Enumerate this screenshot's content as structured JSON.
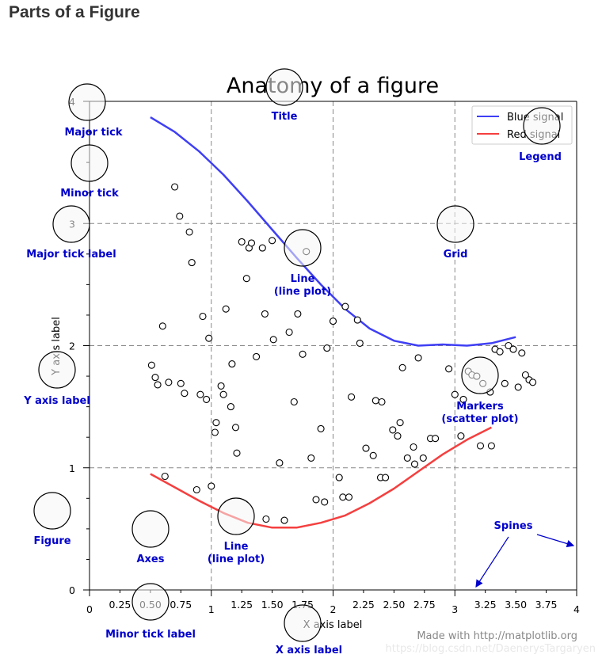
{
  "page": {
    "heading": "Parts of a Figure"
  },
  "chart_data": {
    "type": "line",
    "title": "Anatomy of a figure",
    "xlabel": "X axis label",
    "ylabel": "Y axis label",
    "xlim": [
      0,
      4
    ],
    "ylim": [
      0,
      4
    ],
    "grid": true,
    "legend_position": "top-right",
    "xticks_major": [
      0,
      1,
      2,
      3,
      4
    ],
    "xticks_minor": [
      "0.25",
      "0.50",
      "0.75",
      "1.25",
      "1.50",
      "1.75",
      "2.25",
      "2.50",
      "2.75",
      "3.25",
      "3.50",
      "3.75"
    ],
    "yticks_major": [
      0,
      1,
      2,
      3,
      4
    ],
    "series": [
      {
        "name": "Blue signal",
        "color": "#3f3ff5",
        "x": [
          0.5,
          0.7,
          0.9,
          1.1,
          1.3,
          1.5,
          1.7,
          1.9,
          2.1,
          2.3,
          2.5,
          2.7,
          2.9,
          3.1,
          3.3,
          3.5
        ],
        "y": [
          3.87,
          3.75,
          3.59,
          3.4,
          3.18,
          2.95,
          2.72,
          2.5,
          2.3,
          2.14,
          2.04,
          2.0,
          2.01,
          2.0,
          2.02,
          2.07
        ]
      },
      {
        "name": "Red signal",
        "color": "#f53f3f",
        "x": [
          0.5,
          0.7,
          0.9,
          1.1,
          1.3,
          1.5,
          1.7,
          1.9,
          2.1,
          2.3,
          2.5,
          2.7,
          2.9,
          3.1,
          3.3
        ],
        "y": [
          0.95,
          0.84,
          0.73,
          0.63,
          0.55,
          0.51,
          0.51,
          0.55,
          0.61,
          0.71,
          0.83,
          0.97,
          1.11,
          1.23,
          1.33
        ]
      }
    ],
    "markers": {
      "x": [
        0.7,
        0.74,
        0.82,
        0.84,
        0.6,
        0.51,
        0.54,
        0.56,
        0.65,
        0.75,
        0.78,
        0.91,
        0.93,
        0.96,
        0.98,
        1.04,
        1.08,
        1.1,
        1.12,
        1.17,
        1.2,
        1.21,
        1.29,
        1.31,
        1.33,
        1.37,
        1.42,
        1.44,
        1.51,
        1.56,
        1.64,
        1.68,
        1.71,
        1.75,
        1.82,
        1.9,
        1.95,
        2.0,
        2.05,
        2.1,
        2.15,
        2.2,
        2.22,
        2.27,
        2.33,
        2.35,
        2.39,
        2.43,
        2.49,
        2.53,
        2.57,
        2.61,
        2.66,
        2.7,
        2.74,
        2.8,
        2.84,
        3.0,
        3.07,
        3.11,
        3.14,
        3.18,
        3.23,
        3.29,
        3.33,
        3.37,
        3.41,
        3.44,
        3.48,
        3.52,
        3.55,
        3.58,
        3.61,
        3.64,
        1.86,
        2.4,
        2.55,
        2.67,
        2.95,
        0.62,
        1.0,
        1.16,
        1.45,
        1.6,
        1.78,
        1.93,
        2.08,
        2.13,
        0.88,
        1.03,
        1.25,
        1.5,
        3.3,
        3.21,
        3.05
      ],
      "y": [
        3.3,
        3.06,
        2.93,
        2.68,
        2.16,
        1.84,
        1.74,
        1.68,
        1.7,
        1.69,
        1.61,
        1.6,
        2.24,
        1.56,
        2.06,
        1.37,
        1.67,
        1.6,
        2.3,
        1.85,
        1.33,
        1.12,
        2.55,
        2.8,
        2.84,
        1.91,
        2.8,
        2.26,
        2.05,
        1.04,
        2.11,
        1.54,
        2.26,
        1.93,
        1.08,
        1.32,
        1.98,
        2.2,
        0.92,
        2.32,
        1.58,
        2.21,
        2.02,
        1.16,
        1.1,
        1.55,
        0.92,
        0.92,
        1.31,
        1.26,
        1.82,
        1.08,
        1.17,
        1.9,
        1.08,
        1.24,
        1.24,
        1.6,
        1.56,
        1.79,
        1.76,
        1.75,
        1.69,
        1.62,
        1.97,
        1.95,
        1.69,
        2.0,
        1.97,
        1.66,
        1.94,
        1.76,
        1.72,
        1.7,
        0.74,
        1.54,
        1.37,
        1.03,
        1.81,
        0.93,
        0.85,
        1.5,
        0.58,
        0.57,
        2.77,
        0.72,
        0.76,
        0.76,
        0.82,
        1.29,
        2.85,
        2.86,
        1.18,
        1.18,
        1.26
      ]
    },
    "legend": {
      "entries": [
        "Blue signal",
        "Red signal"
      ]
    },
    "credit": "Made with http://matplotlib.org",
    "watermark": "https://blog.csdn.net/DaenerysTargaryen"
  },
  "annotations": [
    {
      "id": "title",
      "lines": [
        "Title"
      ]
    },
    {
      "id": "legend",
      "lines": [
        "Legend"
      ]
    },
    {
      "id": "major-tick",
      "lines": [
        "Major tick"
      ]
    },
    {
      "id": "minor-tick",
      "lines": [
        "Minor tick"
      ]
    },
    {
      "id": "major-tick-label",
      "lines": [
        "Major tick label"
      ]
    },
    {
      "id": "grid",
      "lines": [
        "Grid"
      ]
    },
    {
      "id": "line-blue",
      "lines": [
        "Line",
        "(line plot)"
      ]
    },
    {
      "id": "y-axis-label",
      "lines": [
        "Y axis label"
      ]
    },
    {
      "id": "markers",
      "lines": [
        "Markers",
        "(scatter plot)"
      ]
    },
    {
      "id": "figure",
      "lines": [
        "Figure"
      ]
    },
    {
      "id": "axes",
      "lines": [
        "Axes"
      ]
    },
    {
      "id": "line-red",
      "lines": [
        "Line",
        "(line plot)"
      ]
    },
    {
      "id": "spines",
      "lines": [
        "Spines"
      ]
    },
    {
      "id": "minor-tick-label",
      "lines": [
        "Minor tick label"
      ]
    },
    {
      "id": "x-axis-label",
      "lines": [
        "X axis label"
      ]
    }
  ]
}
